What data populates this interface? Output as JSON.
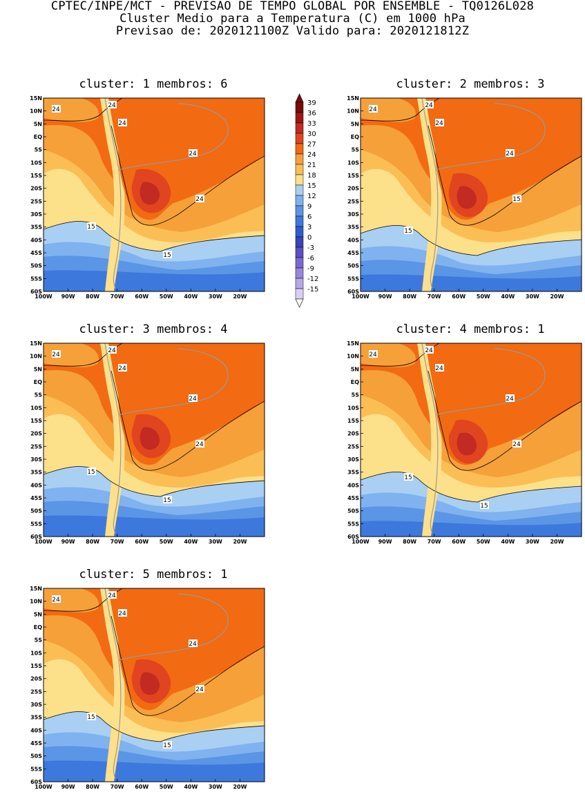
{
  "header": {
    "line1": "CPTEC/INPE/MCT - PREVISAO DE TEMPO GLOBAL POR ENSEMBLE - TQ0126L028",
    "line2": "Cluster Medio para a Temperatura (C) em 1000 hPa",
    "line3": "Previsao de: 2020121100Z   Valido para: 2020121812Z"
  },
  "axes": {
    "lat_labels": [
      "15N",
      "10N",
      "5N",
      "EQ",
      "5S",
      "10S",
      "15S",
      "20S",
      "25S",
      "30S",
      "35S",
      "40S",
      "45S",
      "50S",
      "55S",
      "60S"
    ],
    "lon_labels": [
      "100W",
      "90W",
      "80W",
      "70W",
      "60W",
      "50W",
      "40W",
      "30W",
      "20W"
    ]
  },
  "colorbar": {
    "labels": [
      "39",
      "36",
      "33",
      "30",
      "27",
      "24",
      "21",
      "18",
      "15",
      "12",
      "9",
      "6",
      "3",
      "0",
      "-3",
      "-6",
      "-9",
      "-12",
      "-15"
    ],
    "colors": [
      "#7a0b0b",
      "#9e1515",
      "#c22a22",
      "#e0451f",
      "#f26a12",
      "#f6a03a",
      "#fbbe55",
      "#fde08a",
      "#a9cff3",
      "#7fb2ef",
      "#5b95e6",
      "#3d78dc",
      "#2c5fcc",
      "#3b43b8",
      "#5a4fc3",
      "#7b68cf",
      "#9885dc",
      "#b8a7e8",
      "#d9cff4"
    ]
  },
  "panels": [
    {
      "id": 1,
      "title": "cluster: 1   membros: 6",
      "contour_labels": [
        "24",
        "24",
        "24",
        "24",
        "24",
        "15",
        "15"
      ]
    },
    {
      "id": 2,
      "title": "cluster: 2   membros: 3",
      "contour_labels": [
        "24",
        "24",
        "24",
        "24",
        "15",
        "15"
      ]
    },
    {
      "id": 3,
      "title": "cluster: 3   membros: 4",
      "contour_labels": [
        "24",
        "24",
        "24",
        "24",
        "24",
        "15",
        "15"
      ]
    },
    {
      "id": 4,
      "title": "cluster: 4   membros: 1",
      "contour_labels": [
        "24",
        "24",
        "24",
        "24",
        "24",
        "15",
        "15"
      ]
    },
    {
      "id": 5,
      "title": "cluster: 5   membros: 1",
      "contour_labels": [
        "24",
        "24",
        "24",
        "24",
        "24",
        "15",
        "15"
      ]
    }
  ]
}
